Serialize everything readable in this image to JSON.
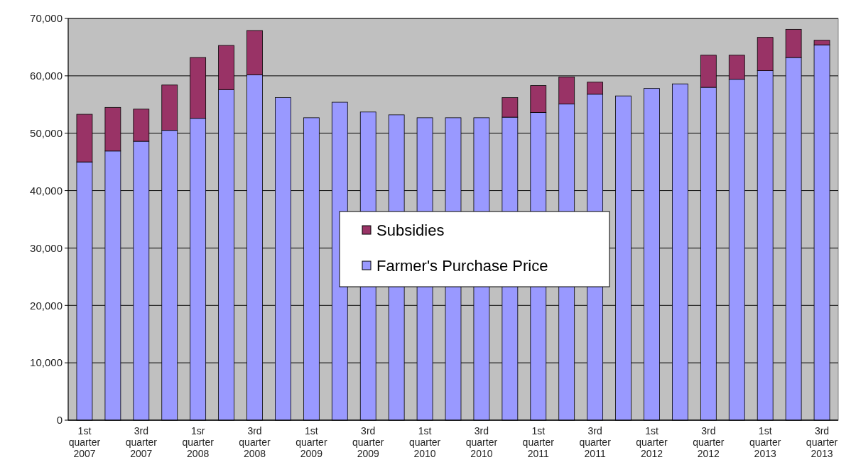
{
  "chart_data": {
    "type": "bar",
    "stacked": true,
    "categories": [
      "1st quarter 2007",
      null,
      "3rd quarter 2007",
      null,
      "1sr quarter 2008",
      null,
      "3rd quarter 2008",
      null,
      "1st quarter 2009",
      null,
      "3rd quarter 2009",
      null,
      "1st quarter 2010",
      null,
      "3rd quarter 2010",
      null,
      "1st quarter 2011",
      null,
      "3rd quarter 2011",
      null,
      "1st quarter 2012",
      null,
      "3rd quarter 2012",
      null,
      "1st quarter 2013",
      null,
      "3rd quarter 2013"
    ],
    "series": [
      {
        "name": "Farmer's Purchase Price",
        "color": "#9999ff",
        "values": [
          45000,
          46900,
          48600,
          50500,
          52600,
          57600,
          60200,
          56200,
          52700,
          55400,
          53700,
          53200,
          52700,
          52700,
          52700,
          52800,
          53600,
          55100,
          56800,
          56500,
          57800,
          58600,
          58000,
          59400,
          60900,
          63200,
          65400
        ]
      },
      {
        "name": "Subsidies",
        "color": "#993366",
        "values": [
          8300,
          7600,
          5600,
          7900,
          10600,
          7700,
          7700,
          0,
          0,
          0,
          0,
          0,
          0,
          0,
          0,
          3400,
          4700,
          4700,
          2100,
          0,
          0,
          0,
          5600,
          4200,
          5800,
          4900,
          800
        ]
      }
    ],
    "ylim": [
      0,
      70000
    ],
    "yticks": [
      {
        "value": 0,
        "label": "0"
      },
      {
        "value": 10000,
        "label": "10,000"
      },
      {
        "value": 20000,
        "label": "20,000"
      },
      {
        "value": 30000,
        "label": "30,000"
      },
      {
        "value": 40000,
        "label": "40,000"
      },
      {
        "value": 50000,
        "label": "50,000"
      },
      {
        "value": 60000,
        "label": "60,000"
      },
      {
        "value": 70000,
        "label": "70,000"
      }
    ],
    "grid": "y",
    "legend": "center"
  }
}
